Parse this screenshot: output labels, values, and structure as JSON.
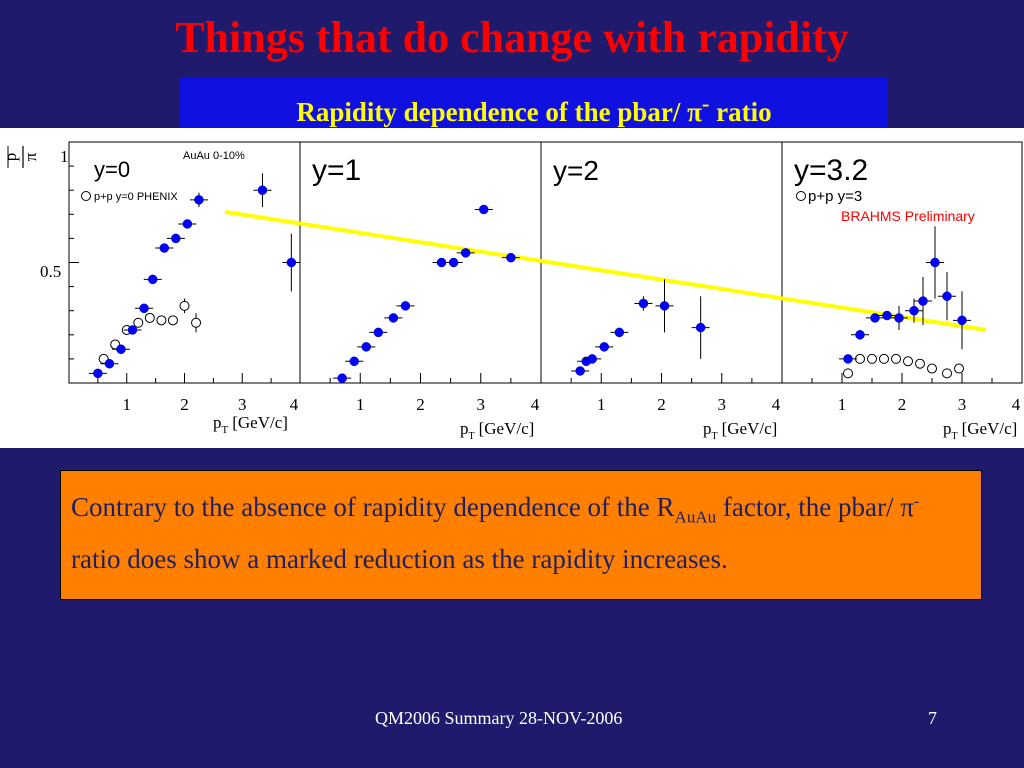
{
  "slide": {
    "title": "Things that do change with rapidity",
    "subtitle_pre": "Rapidity dependence of the  pbar/ ",
    "subtitle_pi": "π",
    "subtitle_sup": "-",
    "subtitle_post": " ratio",
    "note": {
      "part1": "Contrary to the absence of rapidity dependence of the R",
      "sub": "AuAu",
      "part2": " factor, the pbar/ ",
      "pi": "π",
      "sup": "-",
      "part3": " ratio does show a marked reduction as the rapidity increases."
    },
    "footer": "QM2006 Summary 28-NOV-2006",
    "page": "7"
  },
  "colors": {
    "background": "#1f1a6b",
    "title": "#ff0000",
    "subtitle_bg": "#1010e0",
    "subtitle_text": "#ffff00",
    "note_bg": "#ff8000",
    "note_text": "#202060",
    "trend_line": "#ffff00",
    "auau_marker": "#0000ff",
    "brahms_label": "#ff0000"
  },
  "chart_data": {
    "type": "scatter",
    "ylabel_num": "p",
    "ylabel_den": "π",
    "xlabel_p": "p",
    "xlabel_sub": "T",
    "xlabel_unit": "[GeV/c]",
    "xlim": [
      0,
      4
    ],
    "ylim": [
      0,
      1
    ],
    "y_ticks": [
      "0.5",
      "1"
    ],
    "x_ticks": [
      "1",
      "2",
      "3",
      "4"
    ],
    "panels": [
      {
        "label": "y=0",
        "annotation": "AuAu 0-10%",
        "legend": "p+p y=0 PHENIX",
        "auau": [
          [
            0.5,
            0.04
          ],
          [
            0.7,
            0.08
          ],
          [
            0.9,
            0.14
          ],
          [
            1.1,
            0.22
          ],
          [
            1.3,
            0.31
          ],
          [
            1.45,
            0.43
          ],
          [
            1.65,
            0.56
          ],
          [
            1.85,
            0.6
          ],
          [
            2.05,
            0.66
          ],
          [
            2.25,
            0.76
          ],
          [
            3.35,
            0.8
          ],
          [
            3.85,
            0.5
          ]
        ],
        "auau_err": [
          0,
          0,
          0,
          0,
          0,
          0,
          0,
          0,
          0,
          0.03,
          0.07,
          0.12
        ],
        "pp": [
          [
            0.6,
            0.1
          ],
          [
            0.8,
            0.16
          ],
          [
            1.0,
            0.22
          ],
          [
            1.2,
            0.25
          ],
          [
            1.4,
            0.27
          ],
          [
            1.6,
            0.26
          ],
          [
            1.8,
            0.26
          ],
          [
            2.0,
            0.32
          ],
          [
            2.2,
            0.25
          ]
        ],
        "pp_err": [
          0,
          0,
          0,
          0,
          0,
          0,
          0,
          0.03,
          0.04
        ]
      },
      {
        "label": "y=1",
        "auau": [
          [
            0.7,
            0.02
          ],
          [
            0.9,
            0.09
          ],
          [
            1.1,
            0.15
          ],
          [
            1.3,
            0.21
          ],
          [
            1.55,
            0.27
          ],
          [
            1.75,
            0.32
          ],
          [
            2.35,
            0.5
          ],
          [
            2.55,
            0.5
          ],
          [
            2.75,
            0.54
          ],
          [
            3.05,
            0.72
          ],
          [
            3.5,
            0.52
          ]
        ],
        "auau_err": [
          0,
          0,
          0,
          0,
          0,
          0,
          0,
          0,
          0,
          0,
          0
        ]
      },
      {
        "label": "y=2",
        "auau": [
          [
            0.65,
            0.05
          ],
          [
            0.75,
            0.09
          ],
          [
            0.85,
            0.1
          ],
          [
            1.05,
            0.15
          ],
          [
            1.3,
            0.21
          ],
          [
            1.7,
            0.33
          ],
          [
            2.05,
            0.32
          ],
          [
            2.65,
            0.23
          ]
        ],
        "auau_err": [
          0,
          0,
          0,
          0,
          0,
          0.03,
          0.11,
          0.13
        ]
      },
      {
        "label": "y=3.2",
        "legend": "p+p y=3",
        "annotation": "BRAHMS Preliminary",
        "auau": [
          [
            1.1,
            0.1
          ],
          [
            1.3,
            0.2
          ],
          [
            1.55,
            0.27
          ],
          [
            1.75,
            0.28
          ],
          [
            1.95,
            0.27
          ],
          [
            2.2,
            0.3
          ],
          [
            2.35,
            0.34
          ],
          [
            2.55,
            0.5
          ],
          [
            2.75,
            0.36
          ],
          [
            3.0,
            0.26
          ]
        ],
        "auau_err": [
          0,
          0,
          0,
          0,
          0.05,
          0.05,
          0.1,
          0.15,
          0.1,
          0.12
        ],
        "pp": [
          [
            1.1,
            0.04
          ],
          [
            1.3,
            0.1
          ],
          [
            1.5,
            0.1
          ],
          [
            1.7,
            0.1
          ],
          [
            1.9,
            0.1
          ],
          [
            2.1,
            0.09
          ],
          [
            2.3,
            0.08
          ],
          [
            2.5,
            0.06
          ],
          [
            2.75,
            0.04
          ],
          [
            2.95,
            0.06
          ]
        ],
        "pp_err": [
          0,
          0,
          0,
          0,
          0,
          0,
          0,
          0,
          0,
          0
        ]
      }
    ],
    "trend_line": {
      "from": {
        "panel": 0,
        "x": 2.7,
        "y": 0.71
      },
      "to": {
        "panel": 3,
        "x": 3.4,
        "y": 0.22
      }
    }
  }
}
